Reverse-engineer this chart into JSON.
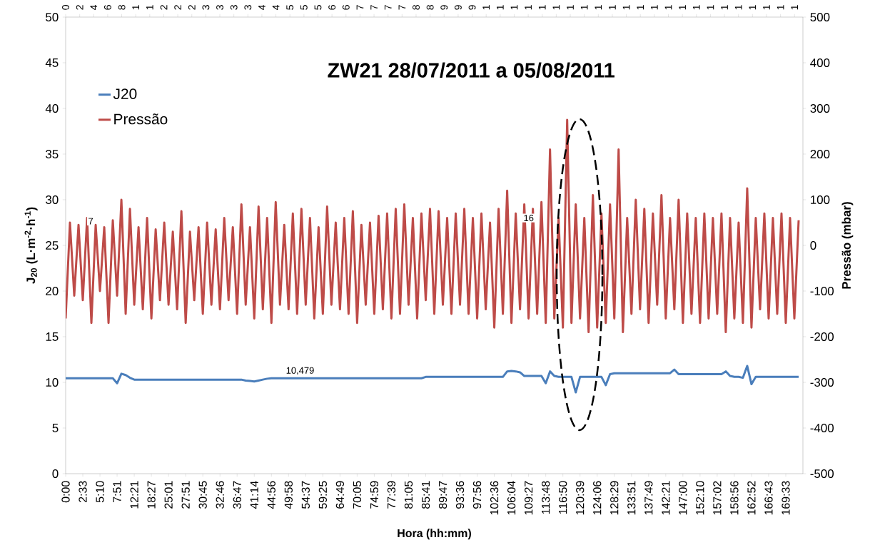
{
  "chart_data": {
    "type": "line",
    "title": "ZW21 28/07/2011 a 05/08/2011",
    "xlabel": "Hora (hh:mm)",
    "ylabel": "**J$_{20}$ (L·m$^{-2}$·h$^{-1}$)**",
    "y2label": "Pressão (mbar)",
    "categories": [
      "0:00",
      null,
      null,
      null,
      "2:33",
      null,
      null,
      null,
      "5:10",
      null,
      null,
      null,
      "7:51",
      null,
      null,
      null,
      "12:21",
      null,
      null,
      null,
      "18:27",
      null,
      null,
      null,
      "25:01",
      null,
      null,
      null,
      "27:51",
      null,
      null,
      null,
      "30:45",
      null,
      null,
      null,
      "32:46",
      null,
      null,
      null,
      "36:47",
      null,
      null,
      null,
      "41:14",
      null,
      null,
      null,
      "44:56",
      null,
      null,
      null,
      "49:58",
      null,
      null,
      null,
      "54:37",
      null,
      null,
      null,
      "59:25",
      null,
      null,
      null,
      "64:49",
      null,
      null,
      null,
      "70:05",
      null,
      null,
      null,
      "74:59",
      null,
      null,
      null,
      "77:39",
      null,
      null,
      null,
      "81:05",
      null,
      null,
      null,
      "85:41",
      null,
      null,
      null,
      "89:47",
      null,
      null,
      null,
      "93:36",
      null,
      null,
      null,
      "97:56",
      null,
      null,
      null,
      "102:36",
      null,
      null,
      null,
      "106:04",
      null,
      null,
      null,
      "109:27",
      null,
      null,
      null,
      "113:48",
      null,
      null,
      null,
      "116:50",
      null,
      null,
      null,
      "120:39",
      null,
      null,
      null,
      "124:06",
      null,
      null,
      null,
      "128:29",
      null,
      null,
      null,
      "133:51",
      null,
      null,
      null,
      "137:49",
      null,
      null,
      null,
      "142:21",
      null,
      null,
      null,
      "147:00",
      null,
      null,
      null,
      "152:10",
      null,
      null,
      null,
      "157:02",
      null,
      null,
      null,
      "158:56",
      null,
      null,
      null,
      "162:52",
      null,
      null,
      null,
      "166:43",
      null,
      null,
      null,
      "169:33",
      null,
      null,
      null
    ],
    "ylim": [
      0,
      50
    ],
    "yticks": [
      0,
      5,
      10,
      15,
      20,
      25,
      30,
      35,
      40,
      45,
      50
    ],
    "y2lim": [
      -500,
      500
    ],
    "y2ticks": [
      -500,
      -400,
      -300,
      -200,
      -100,
      0,
      100,
      200,
      300,
      400,
      500
    ],
    "legend": "top left",
    "marker": "none",
    "annotations": [
      "7",
      "16",
      "10,479",
      "0",
      "2",
      "4",
      "6",
      "8",
      "1",
      "1",
      "2",
      "2",
      "2",
      "3",
      "3",
      "3",
      "3",
      "4",
      "4",
      "5",
      "5",
      "5",
      "6",
      "6",
      "7",
      "7",
      "7",
      "7",
      "8",
      "8",
      "9",
      "9",
      "9",
      "1",
      "1",
      "1",
      "1",
      "1",
      "1",
      "1",
      "1",
      "1",
      "1",
      "1",
      "1",
      "1",
      "1",
      "1",
      "1",
      "1",
      "1",
      "1",
      "1",
      "1",
      "1",
      "1"
    ],
    "series": [
      {
        "name": "J20",
        "color": "#4a7ebb",
        "values": [
          10.45,
          10.45,
          10.45,
          10.45,
          10.45,
          10.45,
          10.45,
          10.45,
          10.45,
          10.45,
          10.45,
          10.45,
          9.9,
          10.95,
          10.8,
          10.5,
          10.3,
          10.3,
          10.3,
          10.3,
          10.3,
          10.3,
          10.3,
          10.3,
          10.3,
          10.3,
          10.3,
          10.3,
          10.3,
          10.3,
          10.3,
          10.3,
          10.3,
          10.3,
          10.3,
          10.3,
          10.3,
          10.3,
          10.3,
          10.3,
          10.3,
          10.3,
          10.2,
          10.15,
          10.1,
          10.2,
          10.3,
          10.4,
          10.45,
          10.45,
          10.45,
          10.45,
          10.45,
          10.45,
          10.45,
          10.45,
          10.45,
          10.45,
          10.45,
          10.45,
          10.45,
          10.45,
          10.45,
          10.45,
          10.45,
          10.45,
          10.45,
          10.45,
          10.45,
          10.45,
          10.45,
          10.45,
          10.45,
          10.45,
          10.45,
          10.45,
          10.45,
          10.45,
          10.45,
          10.45,
          10.45,
          10.45,
          10.45,
          10.45,
          10.6,
          10.6,
          10.6,
          10.6,
          10.6,
          10.6,
          10.6,
          10.6,
          10.6,
          10.6,
          10.6,
          10.6,
          10.6,
          10.6,
          10.6,
          10.6,
          10.6,
          10.6,
          10.6,
          11.2,
          11.25,
          11.2,
          11.1,
          10.7,
          10.7,
          10.7,
          10.7,
          10.7,
          9.9,
          11.2,
          10.7,
          10.6,
          10.6,
          10.6,
          10.6,
          8.9,
          10.6,
          10.6,
          10.6,
          10.6,
          10.6,
          10.6,
          9.7,
          10.9,
          11.0,
          11.0,
          11.0,
          11.0,
          11.0,
          11.0,
          11.0,
          11.0,
          11.0,
          11.0,
          11.0,
          11.0,
          11.0,
          11.0,
          11.4,
          10.9,
          10.9,
          10.9,
          10.9,
          10.9,
          10.9,
          10.9,
          10.9,
          10.9,
          10.9,
          10.9,
          11.2,
          10.7,
          10.6,
          10.6,
          10.5,
          11.8,
          9.8,
          10.6,
          10.6,
          10.6,
          10.6,
          10.6,
          10.6,
          10.6,
          10.6,
          10.6,
          10.6,
          10.6
        ]
      },
      {
        "name": "Pressão",
        "color": "#be4b48",
        "axis": "y2",
        "values": [
          -160,
          50,
          -110,
          45,
          -120,
          60,
          -170,
          45,
          -100,
          40,
          -170,
          55,
          -110,
          100,
          -150,
          80,
          -130,
          40,
          -140,
          60,
          -160,
          35,
          -120,
          50,
          -130,
          30,
          -140,
          75,
          -170,
          30,
          -120,
          40,
          -150,
          50,
          -130,
          35,
          -140,
          60,
          -120,
          40,
          -150,
          90,
          -130,
          40,
          -160,
          85,
          -140,
          60,
          -170,
          95,
          -130,
          45,
          -140,
          70,
          -150,
          80,
          -130,
          60,
          -160,
          40,
          -150,
          85,
          -130,
          50,
          -140,
          60,
          -150,
          75,
          -170,
          45,
          -130,
          50,
          -150,
          65,
          -140,
          70,
          -160,
          80,
          -150,
          90,
          -130,
          60,
          -160,
          70,
          -120,
          80,
          -150,
          75,
          -130,
          60,
          -150,
          70,
          -130,
          80,
          -150,
          60,
          -160,
          70,
          -140,
          50,
          -180,
          80,
          -150,
          120,
          -170,
          70,
          -140,
          90,
          -160,
          80,
          -150,
          95,
          -170,
          210,
          -160,
          60,
          -180,
          275,
          -170,
          90,
          -160,
          60,
          -190,
          110,
          -180,
          70,
          -170,
          90,
          -160,
          210,
          -190,
          60,
          -150,
          100,
          -140,
          80,
          -170,
          70,
          -130,
          110,
          -160,
          60,
          -140,
          100,
          -170,
          70,
          -150,
          60,
          -170,
          70,
          -160,
          60,
          -150,
          70,
          -190,
          60,
          -160,
          50,
          -170,
          125,
          -180,
          60,
          -140,
          70,
          -160,
          60,
          -150,
          70,
          -170,
          60,
          -160,
          55
        ]
      }
    ]
  }
}
